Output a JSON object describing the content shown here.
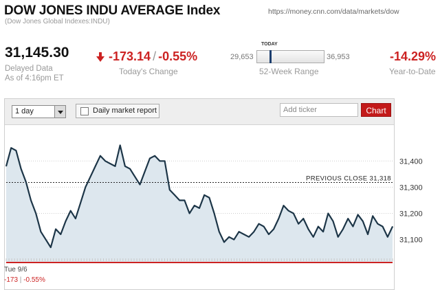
{
  "header": {
    "title": "DOW JONES INDU AVERAGE Index",
    "subtitle": "(Dow Jones Global Indexes:INDU)",
    "url": "https://money.cnn.com/data/markets/dow"
  },
  "quote": {
    "price": "31,145.30",
    "delayed_line1": "Delayed Data",
    "delayed_line2": "As of 4:16pm ET",
    "change_points": "-173.14",
    "change_separator": "/",
    "change_percent": "-0.55%",
    "change_caption": "Today's Change",
    "range_low": "29,653",
    "range_high": "36,953",
    "range_today_label": "TODAY",
    "range_position": 0.205,
    "range_caption": "52-Week Range",
    "ytd": "-14.29%",
    "ytd_caption": "Year-to-Date"
  },
  "toolbar": {
    "period_value": "1 day",
    "daily_report_label": "Daily market report",
    "daily_report_checked": false,
    "ticker_placeholder": "Add ticker",
    "chart_button": "Chart"
  },
  "footer": {
    "date": "Tue 9/6",
    "change_points": "-173",
    "separator": "|",
    "change_percent": "-0.55%"
  },
  "colors": {
    "negative": "#cc2222",
    "line": "#1c3547",
    "area": "#dde7ee",
    "chart_button": "#c31a1a"
  },
  "chart_data": {
    "type": "area",
    "title": "",
    "xlabel": "",
    "ylabel": "",
    "ylim": [
      31015,
      31490
    ],
    "yticks": [
      31100,
      31200,
      31300,
      31400
    ],
    "ytick_labels": [
      "31,100",
      "31,200",
      "31,300",
      "31,400"
    ],
    "reference_line": {
      "label": "PREVIOUS CLOSE 31,318",
      "value": 31318
    },
    "x_label": "Tue 9/6",
    "values": [
      31380,
      31450,
      31440,
      31370,
      31320,
      31250,
      31200,
      31130,
      31100,
      31070,
      31140,
      31120,
      31170,
      31210,
      31180,
      31240,
      31300,
      31340,
      31380,
      31420,
      31400,
      31390,
      31380,
      31460,
      31380,
      31370,
      31340,
      31310,
      31360,
      31410,
      31420,
      31400,
      31400,
      31290,
      31270,
      31250,
      31250,
      31200,
      31230,
      31220,
      31270,
      31260,
      31200,
      31130,
      31090,
      31110,
      31100,
      31130,
      31120,
      31110,
      31130,
      31160,
      31150,
      31120,
      31140,
      31180,
      31230,
      31210,
      31200,
      31160,
      31180,
      31140,
      31110,
      31150,
      31130,
      31200,
      31170,
      31110,
      31140,
      31180,
      31150,
      31195,
      31170,
      31120,
      31190,
      31160,
      31150,
      31110,
      31150
    ]
  }
}
